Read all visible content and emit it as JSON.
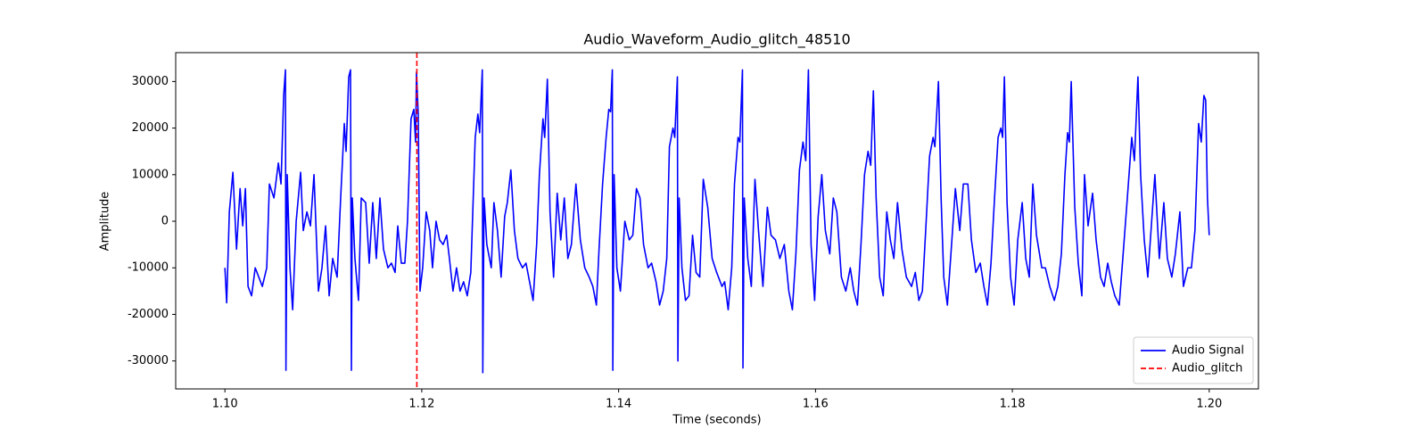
{
  "chart_data": {
    "type": "line",
    "title": "Audio_Waveform_Audio_glitch_48510",
    "x_label": "Time (seconds)",
    "y_label": "Amplitude",
    "xlim": [
      1.095,
      1.205
    ],
    "ylim": [
      -36000,
      36200
    ],
    "xticks": [
      {
        "value": 1.1,
        "label": "1.10"
      },
      1.12,
      1.14,
      1.16,
      1.18,
      {
        "value": 1.2,
        "label": "1.20"
      }
    ],
    "yticks": [
      -30000,
      -20000,
      -10000,
      0,
      10000,
      20000,
      30000
    ],
    "legend": "lower right",
    "x": [
      1.1,
      1.10018,
      1.10045,
      1.10081,
      1.10118,
      1.10154,
      1.10181,
      1.10208,
      1.10235,
      1.10271,
      1.10308,
      1.10344,
      1.1038,
      1.10425,
      1.10452,
      1.10498,
      1.10543,
      1.1057,
      1.10597,
      1.10615,
      1.1062,
      1.10633,
      1.10661,
      1.10688,
      1.10724,
      1.10769,
      1.10796,
      1.10833,
      1.10869,
      1.10905,
      1.1095,
      1.10986,
      1.11023,
      1.11059,
      1.11095,
      1.1114,
      1.11176,
      1.11213,
      1.11231,
      1.11258,
      1.11276,
      1.11285,
      1.11294,
      1.11321,
      1.11357,
      1.11385,
      1.1143,
      1.11466,
      1.11502,
      1.11538,
      1.11575,
      1.11611,
      1.11656,
      1.11692,
      1.11729,
      1.11756,
      1.11792,
      1.11828,
      1.11855,
      1.11891,
      1.11919,
      1.11937,
      1.11946,
      1.11964,
      1.11982,
      1.12009,
      1.12045,
      1.12081,
      1.12109,
      1.12145,
      1.12181,
      1.12217,
      1.12253,
      1.12281,
      1.12317,
      1.12353,
      1.12389,
      1.12425,
      1.12462,
      1.12498,
      1.12543,
      1.1257,
      1.12588,
      1.12615,
      1.1262,
      1.12633,
      1.12661,
      1.12706,
      1.12733,
      1.12769,
      1.12806,
      1.12842,
      1.12869,
      1.12905,
      1.12941,
      1.12977,
      1.13023,
      1.13059,
      1.13095,
      1.13131,
      1.13167,
      1.13195,
      1.13231,
      1.13249,
      1.13276,
      1.13303,
      1.13339,
      1.13376,
      1.13412,
      1.13448,
      1.13484,
      1.1352,
      1.13566,
      1.13611,
      1.13656,
      1.13701,
      1.13738,
      1.13774,
      1.13801,
      1.13837,
      1.13873,
      1.139,
      1.13918,
      1.13936,
      1.13941,
      1.13954,
      1.13982,
      1.14018,
      1.14063,
      1.14108,
      1.14144,
      1.14181,
      1.14217,
      1.14253,
      1.14299,
      1.14335,
      1.1438,
      1.14416,
      1.14453,
      1.14489,
      1.14516,
      1.14552,
      1.1457,
      1.14597,
      1.14602,
      1.14615,
      1.14643,
      1.14679,
      1.14715,
      1.14751,
      1.14787,
      1.14824,
      1.1486,
      1.14905,
      1.1495,
      1.14996,
      1.1505,
      1.15077,
      1.15113,
      1.15149,
      1.15177,
      1.15213,
      1.15231,
      1.15258,
      1.15263,
      1.15276,
      1.15312,
      1.15348,
      1.15385,
      1.15421,
      1.15466,
      1.15511,
      1.15548,
      1.15593,
      1.15638,
      1.15683,
      1.15729,
      1.15765,
      1.15801,
      1.15837,
      1.15873,
      1.15901,
      1.15928,
      1.15955,
      1.15991,
      1.16027,
      1.16064,
      1.161,
      1.16145,
      1.16181,
      1.16217,
      1.16263,
      1.16308,
      1.16353,
      1.16389,
      1.16426,
      1.16462,
      1.16498,
      1.16534,
      1.16561,
      1.16588,
      1.16616,
      1.16652,
      1.16688,
      1.16724,
      1.1676,
      1.16796,
      1.16833,
      1.16878,
      1.16923,
      1.16976,
      1.17014,
      1.1705,
      1.17086,
      1.17122,
      1.17159,
      1.17195,
      1.17213,
      1.17249,
      1.17276,
      1.17303,
      1.1734,
      1.17376,
      1.17421,
      1.17466,
      1.17502,
      1.17548,
      1.17584,
      1.17629,
      1.17674,
      1.17711,
      1.17747,
      1.17783,
      1.17819,
      1.17855,
      1.17883,
      1.17901,
      1.17919,
      1.17946,
      1.17982,
      1.18018,
      1.18055,
      1.181,
      1.18136,
      1.18172,
      1.18208,
      1.18245,
      1.18299,
      1.18335,
      1.1838,
      1.18426,
      1.18462,
      1.18498,
      1.18534,
      1.18561,
      1.18579,
      1.18598,
      1.18634,
      1.1867,
      1.18706,
      1.18733,
      1.18769,
      1.18815,
      1.18851,
      1.18896,
      1.18932,
      1.18969,
      1.19005,
      1.19041,
      1.19086,
      1.19122,
      1.19168,
      1.19213,
      1.1924,
      1.19276,
      1.19303,
      1.1934,
      1.19376,
      1.19412,
      1.19448,
      1.19493,
      1.19539,
      1.19575,
      1.1962,
      1.19656,
      1.19702,
      1.19738,
      1.19783,
      1.19819,
      1.19855,
      1.19892,
      1.19919,
      1.19946,
      1.19964,
      1.19982,
      1.2
    ],
    "series": [
      {
        "name": "Audio Signal",
        "color": "#0000ff",
        "values": [
          -10000,
          -17500,
          2000,
          10500,
          -6000,
          7000,
          -1000,
          7000,
          -14000,
          -16000,
          -10000,
          -12000,
          -14000,
          -10000,
          8000,
          5000,
          12500,
          8000,
          27000,
          32500,
          -32000,
          10000,
          -10000,
          -19000,
          0,
          10500,
          -2000,
          2000,
          -1000,
          10000,
          -15000,
          -10000,
          -1000,
          -16000,
          -8000,
          -12000,
          5000,
          21000,
          15000,
          31000,
          32500,
          -32000,
          5000,
          -8000,
          -17000,
          5000,
          4000,
          -9000,
          4000,
          -8000,
          5000,
          -6000,
          -10000,
          -9000,
          -11000,
          -1000,
          -9000,
          -9000,
          0,
          22000,
          24000,
          17000,
          32000,
          23000,
          -15000,
          -10000,
          2000,
          -2000,
          -10000,
          0,
          -4000,
          -5000,
          -3000,
          -8000,
          -15000,
          -10000,
          -15000,
          -13000,
          -16000,
          -11000,
          18000,
          23000,
          19000,
          32500,
          -32500,
          5000,
          -5000,
          -10000,
          4000,
          -2000,
          -12000,
          1000,
          4000,
          11000,
          -2000,
          -8000,
          -10000,
          -9000,
          -13000,
          -17000,
          -5000,
          10000,
          22000,
          18000,
          30500,
          2000,
          -12000,
          6000,
          -4000,
          5000,
          -8000,
          -5000,
          8000,
          -4000,
          -10000,
          -12000,
          -14000,
          -18000,
          -6000,
          8000,
          18000,
          24000,
          23500,
          32500,
          -32000,
          10000,
          -10000,
          -15000,
          0,
          -4000,
          -3000,
          7000,
          5000,
          -5000,
          -10000,
          -9000,
          -13000,
          -18000,
          -15000,
          -8000,
          16000,
          20000,
          18000,
          31000,
          -30000,
          5000,
          -10000,
          -17000,
          -16000,
          -3000,
          -11000,
          -12000,
          9000,
          3000,
          -8000,
          -11000,
          -14000,
          -13000,
          -19000,
          -10000,
          8000,
          18000,
          17000,
          32500,
          -31500,
          5000,
          -8000,
          -14000,
          9000,
          -2000,
          -14000,
          3000,
          -3000,
          -4000,
          -8000,
          -5000,
          -15000,
          -19000,
          -7000,
          11000,
          17000,
          13000,
          32500,
          -5000,
          -17000,
          1000,
          10000,
          -2000,
          -7000,
          5000,
          2000,
          -12000,
          -15000,
          -10000,
          -15000,
          -18000,
          -5000,
          10000,
          15000,
          12000,
          28000,
          5000,
          -12000,
          -16000,
          2000,
          -4000,
          -8000,
          4000,
          -6000,
          -12000,
          -14000,
          -11000,
          -17000,
          -15000,
          -1000,
          14000,
          18000,
          16000,
          30000,
          5000,
          -12000,
          -18000,
          -7000,
          7000,
          -2000,
          8000,
          8000,
          -4000,
          -11000,
          -9000,
          -14000,
          -18000,
          -9000,
          5000,
          18000,
          20000,
          18000,
          31000,
          4000,
          -12000,
          -18000,
          -4000,
          4000,
          -8000,
          -12000,
          8000,
          -3000,
          -10000,
          -10000,
          -14000,
          -17000,
          -14000,
          -7000,
          10000,
          19000,
          17000,
          30000,
          3000,
          -9000,
          -16000,
          10000,
          -1000,
          6000,
          -4000,
          -12000,
          -14000,
          -9000,
          -13000,
          -16000,
          -18000,
          -8000,
          5000,
          18000,
          13000,
          31000,
          10000,
          -4000,
          -12000,
          -1000,
          10000,
          -8000,
          4000,
          -8000,
          -12000,
          -7000,
          2000,
          -14000,
          -10000,
          -10000,
          -2000,
          21000,
          17000,
          27000,
          26000,
          5000,
          -3000
        ]
      }
    ],
    "markers": [
      {
        "name": "Audio_glitch",
        "x": 1.1195,
        "color": "#ff0000"
      }
    ]
  }
}
